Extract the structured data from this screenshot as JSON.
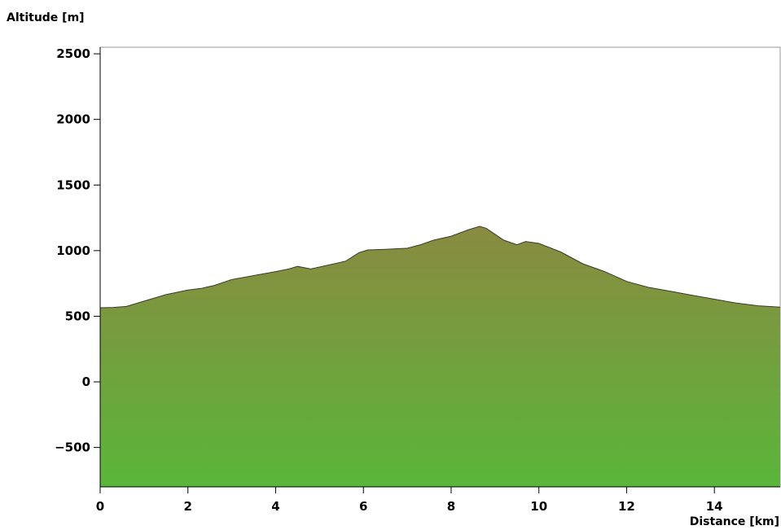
{
  "chart_data": {
    "type": "area",
    "xlabel": "Distance [km]",
    "ylabel": "Altitude [m]",
    "xlim": [
      0,
      15.5
    ],
    "ylim": [
      -800,
      2550
    ],
    "x_ticks": [
      0,
      2,
      4,
      6,
      8,
      10,
      12,
      14
    ],
    "y_ticks": [
      -500,
      0,
      500,
      1000,
      1500,
      2000,
      2500
    ],
    "grid": false,
    "fill_gradient": {
      "top": "#8a8a40",
      "bottom": "#5ab63a"
    },
    "series": [
      {
        "x": [
          0,
          0.3,
          0.6,
          1.0,
          1.5,
          2.0,
          2.3,
          2.6,
          3.0,
          3.5,
          4.0,
          4.3,
          4.5,
          4.8,
          5.2,
          5.6,
          5.9,
          6.1,
          6.5,
          7.0,
          7.3,
          7.6,
          8.0,
          8.4,
          8.65,
          8.8,
          9.2,
          9.5,
          9.7,
          10.0,
          10.5,
          11.0,
          11.5,
          12.0,
          12.5,
          13.0,
          13.5,
          14.0,
          14.5,
          15.0,
          15.5
        ],
        "y": [
          565,
          567,
          575,
          615,
          665,
          700,
          712,
          735,
          780,
          810,
          840,
          860,
          880,
          860,
          890,
          920,
          985,
          1005,
          1010,
          1018,
          1045,
          1080,
          1110,
          1160,
          1185,
          1170,
          1080,
          1045,
          1070,
          1055,
          990,
          900,
          840,
          765,
          720,
          690,
          660,
          630,
          600,
          580,
          570
        ]
      }
    ]
  }
}
